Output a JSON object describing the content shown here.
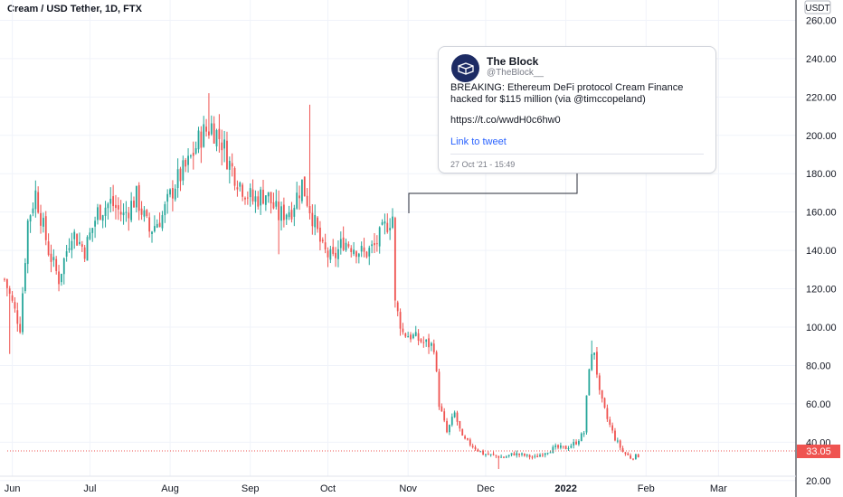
{
  "title": "Cream / USD Tether, 1D, FTX",
  "currency_label": "USDT",
  "last_price_label": "33.05",
  "colors": {
    "up": "#26a69a",
    "down": "#ef5350",
    "grid": "#f0f3fa",
    "axis_text": "#131722",
    "price_line": "#ef5350"
  },
  "tweet": {
    "name": "The Block",
    "handle": "@TheBlock__",
    "text": "BREAKING: Ethereum DeFi protocol Cream Finance hacked for $115 million (via @timccopeland)",
    "url": "https://t.co/wwdH0c6hw0",
    "link_text": "Link to tweet",
    "timestamp": "27 Oct '21 - 15:49",
    "avatar_icon": "cube-icon"
  },
  "chart_data": {
    "type": "candlestick",
    "title": "Cream / USD Tether, 1D, FTX",
    "y_axis_ticks": [
      "260.00",
      "240.00",
      "220.00",
      "200.00",
      "180.00",
      "160.00",
      "140.00",
      "120.00",
      "100.00",
      "80.00",
      "60.00",
      "40.00",
      "20.00"
    ],
    "x_axis_ticks": [
      {
        "label": "Jun",
        "bold": false
      },
      {
        "label": "Jul",
        "bold": false
      },
      {
        "label": "Aug",
        "bold": false
      },
      {
        "label": "Sep",
        "bold": false
      },
      {
        "label": "Oct",
        "bold": false
      },
      {
        "label": "Nov",
        "bold": false
      },
      {
        "label": "Dec",
        "bold": false
      },
      {
        "label": "2022",
        "bold": true
      },
      {
        "label": "Feb",
        "bold": false
      },
      {
        "label": "Mar",
        "bold": false
      }
    ],
    "ylim": [
      18,
      264
    ],
    "last_price": 33.05,
    "grid": true,
    "price_path": [
      {
        "day": 0,
        "price": 125
      },
      {
        "day": 6,
        "price": 100
      },
      {
        "day": 9,
        "price": 155
      },
      {
        "day": 12,
        "price": 170
      },
      {
        "day": 17,
        "price": 140
      },
      {
        "day": 21,
        "price": 125
      },
      {
        "day": 26,
        "price": 150
      },
      {
        "day": 31,
        "price": 140
      },
      {
        "day": 36,
        "price": 160
      },
      {
        "day": 41,
        "price": 165
      },
      {
        "day": 46,
        "price": 158
      },
      {
        "day": 51,
        "price": 168
      },
      {
        "day": 56,
        "price": 150
      },
      {
        "day": 61,
        "price": 158
      },
      {
        "day": 66,
        "price": 175
      },
      {
        "day": 71,
        "price": 185
      },
      {
        "day": 76,
        "price": 200
      },
      {
        "day": 80,
        "price": 205
      },
      {
        "day": 84,
        "price": 197
      },
      {
        "day": 87,
        "price": 185
      },
      {
        "day": 91,
        "price": 175
      },
      {
        "day": 96,
        "price": 166
      },
      {
        "day": 101,
        "price": 170
      },
      {
        "day": 106,
        "price": 158
      },
      {
        "day": 111,
        "price": 162
      },
      {
        "day": 115,
        "price": 175
      },
      {
        "day": 119,
        "price": 158
      },
      {
        "day": 123,
        "price": 140
      },
      {
        "day": 127,
        "price": 135
      },
      {
        "day": 131,
        "price": 145
      },
      {
        "day": 135,
        "price": 142
      },
      {
        "day": 139,
        "price": 138
      },
      {
        "day": 143,
        "price": 142
      },
      {
        "day": 147,
        "price": 152
      },
      {
        "day": 150,
        "price": 158
      },
      {
        "day": 151,
        "price": 112
      },
      {
        "day": 154,
        "price": 97
      },
      {
        "day": 158,
        "price": 95
      },
      {
        "day": 162,
        "price": 92
      },
      {
        "day": 166,
        "price": 90
      },
      {
        "day": 168,
        "price": 60
      },
      {
        "day": 171,
        "price": 45
      },
      {
        "day": 174,
        "price": 55
      },
      {
        "day": 177,
        "price": 42
      },
      {
        "day": 181,
        "price": 38
      },
      {
        "day": 185,
        "price": 34
      },
      {
        "day": 189,
        "price": 33
      },
      {
        "day": 193,
        "price": 32
      },
      {
        "day": 197,
        "price": 34
      },
      {
        "day": 201,
        "price": 33
      },
      {
        "day": 205,
        "price": 32
      },
      {
        "day": 209,
        "price": 35
      },
      {
        "day": 213,
        "price": 37
      },
      {
        "day": 217,
        "price": 37
      },
      {
        "day": 221,
        "price": 40
      },
      {
        "day": 224,
        "price": 45
      },
      {
        "day": 226,
        "price": 80
      },
      {
        "day": 228,
        "price": 88
      },
      {
        "day": 230,
        "price": 65
      },
      {
        "day": 233,
        "price": 52
      },
      {
        "day": 236,
        "price": 42
      },
      {
        "day": 239,
        "price": 35
      },
      {
        "day": 242,
        "price": 32
      },
      {
        "day": 245,
        "price": 33
      }
    ]
  }
}
